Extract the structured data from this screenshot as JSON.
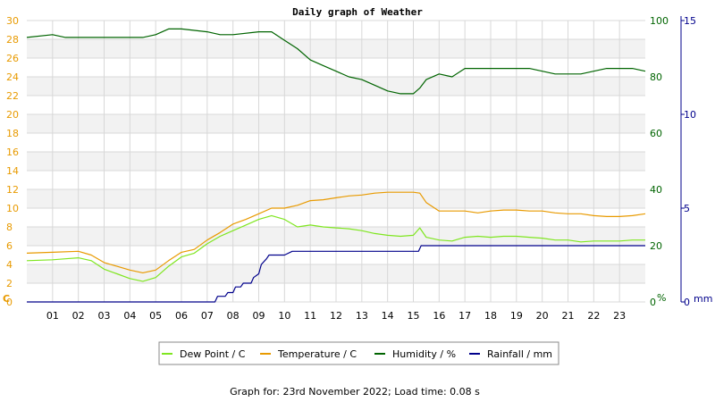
{
  "chart_data": {
    "type": "line",
    "title": "Daily graph of Weather",
    "footer": "Graph for: 23rd November 2022; Load time: 0.08 s",
    "axes": {
      "left": {
        "unit": "C",
        "min": 0,
        "max": 30,
        "ticks": [
          0,
          2,
          4,
          6,
          8,
          10,
          12,
          14,
          16,
          18,
          20,
          22,
          24,
          26,
          28,
          30
        ],
        "color": "#e89a00"
      },
      "humidity": {
        "unit": "%",
        "min": 0,
        "max": 100,
        "ticks": [
          0,
          20,
          40,
          60,
          80,
          100
        ],
        "color": "#006400"
      },
      "rain": {
        "unit": "mm",
        "min": 0,
        "max": 15,
        "ticks": [
          0,
          5,
          10,
          15
        ],
        "color": "#00008b"
      },
      "x": {
        "min": 0,
        "max": 24,
        "tick_labels": [
          "01",
          "02",
          "03",
          "04",
          "05",
          "06",
          "07",
          "08",
          "09",
          "10",
          "11",
          "12",
          "13",
          "14",
          "15",
          "16",
          "17",
          "18",
          "19",
          "20",
          "21",
          "22",
          "23"
        ]
      }
    },
    "grid": true,
    "legend_position": "bottom-center",
    "series": [
      {
        "name": "Dew Point / C",
        "color": "#7fe620",
        "axis": "left",
        "points": [
          [
            0,
            4.4
          ],
          [
            1,
            4.5
          ],
          [
            1.5,
            4.6
          ],
          [
            2,
            4.7
          ],
          [
            2.5,
            4.4
          ],
          [
            3,
            3.5
          ],
          [
            3.5,
            3.0
          ],
          [
            4,
            2.5
          ],
          [
            4.5,
            2.2
          ],
          [
            5,
            2.6
          ],
          [
            5.5,
            3.8
          ],
          [
            6,
            4.8
          ],
          [
            6.5,
            5.2
          ],
          [
            7,
            6.2
          ],
          [
            7.5,
            7.0
          ],
          [
            8,
            7.6
          ],
          [
            8.5,
            8.2
          ],
          [
            9,
            8.8
          ],
          [
            9.5,
            9.2
          ],
          [
            10,
            8.8
          ],
          [
            10.5,
            8.0
          ],
          [
            11,
            8.2
          ],
          [
            11.5,
            8.0
          ],
          [
            12,
            7.9
          ],
          [
            12.5,
            7.8
          ],
          [
            13,
            7.6
          ],
          [
            13.5,
            7.3
          ],
          [
            14,
            7.1
          ],
          [
            14.5,
            7.0
          ],
          [
            15,
            7.1
          ],
          [
            15.25,
            7.9
          ],
          [
            15.5,
            6.9
          ],
          [
            16,
            6.6
          ],
          [
            16.5,
            6.5
          ],
          [
            17,
            6.9
          ],
          [
            17.5,
            7.0
          ],
          [
            18,
            6.9
          ],
          [
            18.5,
            7.0
          ],
          [
            19,
            7.0
          ],
          [
            19.5,
            6.9
          ],
          [
            20,
            6.8
          ],
          [
            20.5,
            6.6
          ],
          [
            21,
            6.6
          ],
          [
            21.5,
            6.4
          ],
          [
            22,
            6.5
          ],
          [
            22.5,
            6.5
          ],
          [
            23,
            6.5
          ],
          [
            23.5,
            6.6
          ],
          [
            24,
            6.6
          ]
        ]
      },
      {
        "name": "Temperature / C",
        "color": "#e89a00",
        "axis": "left",
        "points": [
          [
            0,
            5.2
          ],
          [
            1,
            5.3
          ],
          [
            2,
            5.4
          ],
          [
            2.5,
            5.0
          ],
          [
            3,
            4.2
          ],
          [
            3.5,
            3.8
          ],
          [
            4,
            3.4
          ],
          [
            4.5,
            3.1
          ],
          [
            5,
            3.4
          ],
          [
            5.5,
            4.4
          ],
          [
            6,
            5.3
          ],
          [
            6.5,
            5.6
          ],
          [
            7,
            6.6
          ],
          [
            7.5,
            7.4
          ],
          [
            8,
            8.3
          ],
          [
            8.5,
            8.8
          ],
          [
            9,
            9.4
          ],
          [
            9.5,
            10.0
          ],
          [
            10,
            10.0
          ],
          [
            10.5,
            10.3
          ],
          [
            11,
            10.8
          ],
          [
            11.5,
            10.9
          ],
          [
            12,
            11.1
          ],
          [
            12.5,
            11.3
          ],
          [
            13,
            11.4
          ],
          [
            13.5,
            11.6
          ],
          [
            14,
            11.7
          ],
          [
            14.5,
            11.7
          ],
          [
            15,
            11.7
          ],
          [
            15.25,
            11.6
          ],
          [
            15.5,
            10.6
          ],
          [
            16,
            9.7
          ],
          [
            16.5,
            9.7
          ],
          [
            17,
            9.7
          ],
          [
            17.5,
            9.5
          ],
          [
            18,
            9.7
          ],
          [
            18.5,
            9.8
          ],
          [
            19,
            9.8
          ],
          [
            19.5,
            9.7
          ],
          [
            20,
            9.7
          ],
          [
            20.5,
            9.5
          ],
          [
            21,
            9.4
          ],
          [
            21.5,
            9.4
          ],
          [
            22,
            9.2
          ],
          [
            22.5,
            9.1
          ],
          [
            23,
            9.1
          ],
          [
            23.5,
            9.2
          ],
          [
            24,
            9.4
          ]
        ]
      },
      {
        "name": "Humidity / %",
        "color": "#006400",
        "axis": "humidity",
        "points": [
          [
            0,
            94
          ],
          [
            1,
            95
          ],
          [
            1.5,
            94
          ],
          [
            3,
            94
          ],
          [
            3.5,
            94
          ],
          [
            4,
            94
          ],
          [
            4.5,
            94
          ],
          [
            5,
            95
          ],
          [
            5.5,
            97
          ],
          [
            6,
            97
          ],
          [
            7,
            96
          ],
          [
            7.5,
            95
          ],
          [
            8,
            95
          ],
          [
            9,
            96
          ],
          [
            9.5,
            96
          ],
          [
            10,
            93
          ],
          [
            10.5,
            90
          ],
          [
            11,
            86
          ],
          [
            11.5,
            84
          ],
          [
            12,
            82
          ],
          [
            12.5,
            80
          ],
          [
            13,
            79
          ],
          [
            13.5,
            77
          ],
          [
            14,
            75
          ],
          [
            14.5,
            74
          ],
          [
            15,
            74
          ],
          [
            15.25,
            76
          ],
          [
            15.5,
            79
          ],
          [
            16,
            81
          ],
          [
            16.5,
            80
          ],
          [
            17,
            83
          ],
          [
            17.5,
            83
          ],
          [
            18,
            83
          ],
          [
            18.5,
            83
          ],
          [
            19,
            83
          ],
          [
            19.5,
            83
          ],
          [
            20,
            82
          ],
          [
            20.5,
            81
          ],
          [
            21,
            81
          ],
          [
            21.5,
            81
          ],
          [
            22,
            82
          ],
          [
            22.5,
            83
          ],
          [
            23,
            83
          ],
          [
            23.5,
            83
          ],
          [
            24,
            82
          ]
        ]
      },
      {
        "name": "Rainfall / mm",
        "color": "#00008b",
        "axis": "rain",
        "step": true,
        "points": [
          [
            0,
            0
          ],
          [
            7.3,
            0
          ],
          [
            7.4,
            0.3
          ],
          [
            7.7,
            0.3
          ],
          [
            7.8,
            0.5
          ],
          [
            8,
            0.5
          ],
          [
            8.1,
            0.8
          ],
          [
            8.3,
            0.8
          ],
          [
            8.4,
            1.0
          ],
          [
            8.7,
            1.0
          ],
          [
            8.8,
            1.3
          ],
          [
            9.0,
            1.5
          ],
          [
            9.1,
            2.0
          ],
          [
            9.3,
            2.3
          ],
          [
            9.4,
            2.5
          ],
          [
            10,
            2.5
          ],
          [
            10.3,
            2.7
          ],
          [
            15.2,
            2.7
          ],
          [
            15.3,
            3.0
          ],
          [
            24,
            3.0
          ]
        ]
      }
    ]
  }
}
